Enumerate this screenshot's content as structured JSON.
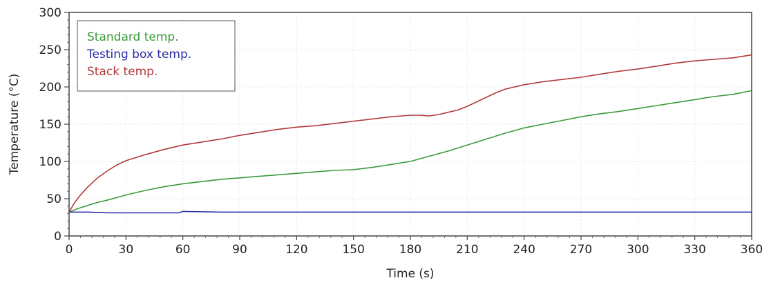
{
  "chart_data": {
    "type": "line",
    "xlabel": "Time (s)",
    "ylabel": "Temperature (°C)",
    "xlim": [
      0,
      360
    ],
    "ylim": [
      0,
      300
    ],
    "xticks": [
      0,
      30,
      60,
      90,
      120,
      150,
      180,
      210,
      240,
      270,
      300,
      330,
      360
    ],
    "yticks": [
      0,
      50,
      100,
      150,
      200,
      250,
      300
    ],
    "grid": true,
    "legend_position": "top-left",
    "series": [
      {
        "name": "Standard temp.",
        "color": "#3a9a3a",
        "x": [
          0,
          5,
          10,
          15,
          20,
          30,
          40,
          50,
          60,
          70,
          80,
          90,
          100,
          110,
          120,
          130,
          140,
          150,
          160,
          170,
          180,
          190,
          200,
          210,
          220,
          230,
          240,
          250,
          260,
          270,
          280,
          290,
          300,
          310,
          320,
          330,
          340,
          350,
          360
        ],
        "y": [
          32,
          37,
          41,
          45,
          48,
          55,
          61,
          66,
          70,
          73,
          76,
          78,
          80,
          82,
          84,
          86,
          88,
          89,
          92,
          96,
          100,
          107,
          114,
          122,
          130,
          138,
          145,
          150,
          155,
          160,
          164,
          167,
          171,
          175,
          179,
          183,
          187,
          190,
          195
        ]
      },
      {
        "name": "Testing box temp.",
        "color": "#2a2aa6",
        "x": [
          0,
          10,
          20,
          30,
          40,
          50,
          58,
          60,
          80,
          100,
          120,
          150,
          180,
          210,
          240,
          270,
          300,
          330,
          360
        ],
        "y": [
          32,
          32,
          31,
          31,
          31,
          31,
          31,
          33,
          32,
          32,
          32,
          32,
          32,
          32,
          32,
          32,
          32,
          32,
          32
        ]
      },
      {
        "name": "Stack temp.",
        "color": "#b23a3a",
        "x": [
          0,
          3,
          6,
          10,
          15,
          20,
          25,
          30,
          40,
          50,
          60,
          70,
          80,
          90,
          100,
          110,
          120,
          130,
          140,
          150,
          160,
          170,
          180,
          185,
          190,
          195,
          200,
          205,
          210,
          215,
          220,
          225,
          230,
          240,
          250,
          260,
          270,
          280,
          290,
          300,
          310,
          320,
          330,
          340,
          350,
          360
        ],
        "y": [
          32,
          45,
          55,
          66,
          78,
          87,
          95,
          101,
          109,
          116,
          122,
          126,
          130,
          135,
          139,
          143,
          146,
          148,
          151,
          154,
          157,
          160,
          162,
          162,
          161,
          163,
          166,
          169,
          174,
          180,
          186,
          192,
          197,
          203,
          207,
          210,
          213,
          217,
          221,
          224,
          228,
          232,
          235,
          237,
          239,
          243
        ]
      }
    ]
  }
}
